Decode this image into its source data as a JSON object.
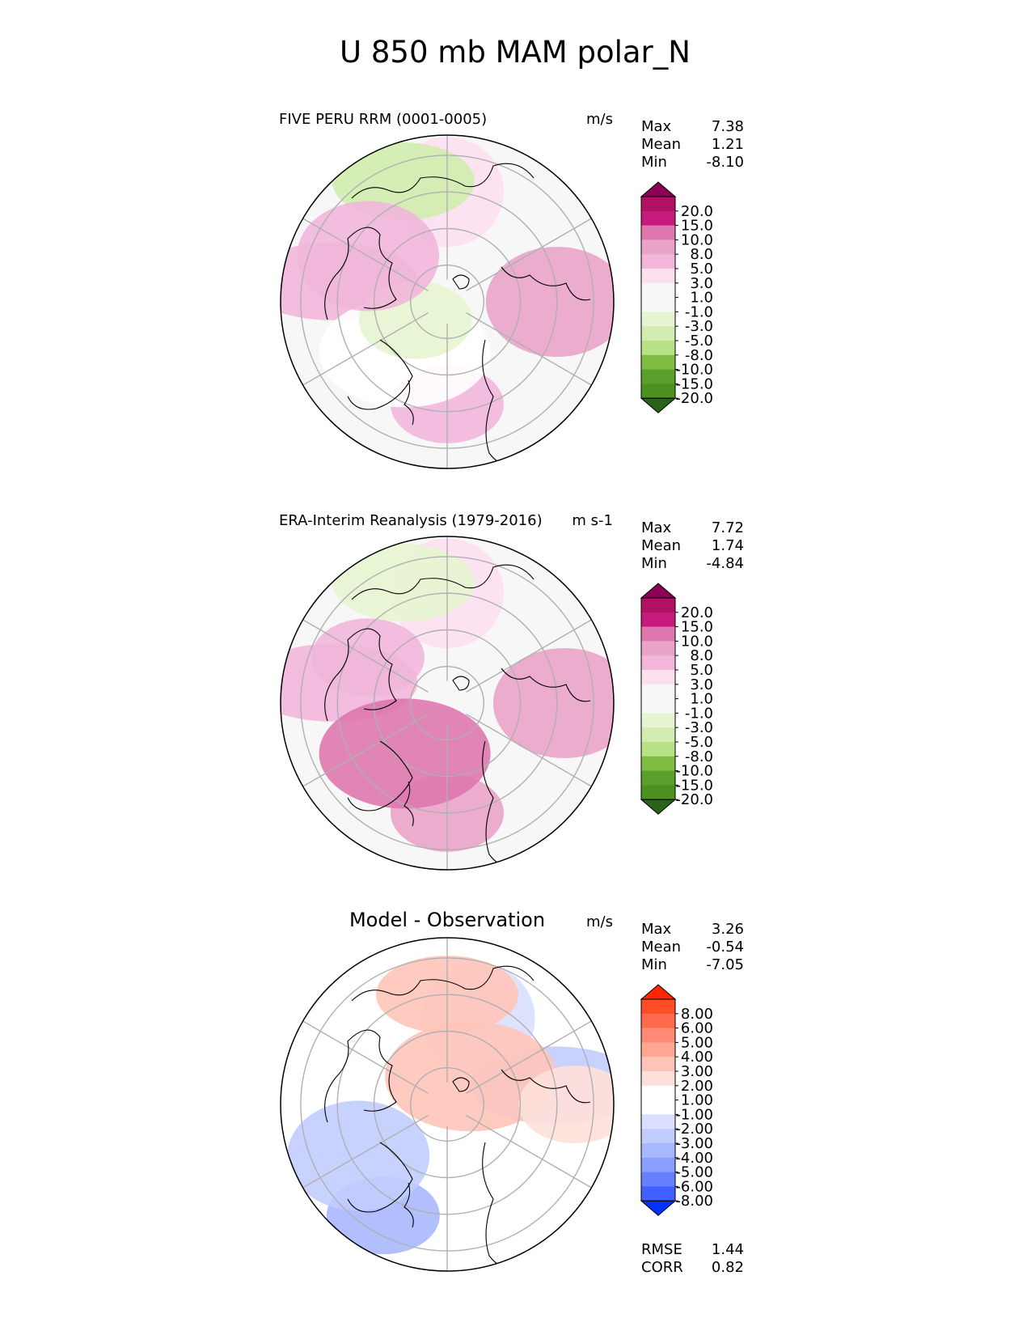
{
  "figure_title": "U 850 mb MAM polar_N",
  "colors": {
    "land_outline": "#000000",
    "grid": "#b0b0b0",
    "frame": "#000000"
  },
  "chart_data": [
    {
      "type": "heatmap",
      "projection": "north-polar-stereographic",
      "title_left": "FIVE PERU RRM (0001-0005)",
      "units": "m/s",
      "stats": {
        "labels": [
          "Max",
          "Mean",
          "Min"
        ],
        "values": [
          "7.38",
          "1.21",
          "-8.10"
        ]
      },
      "colorbar": {
        "ticks": [
          "20.0",
          "15.0",
          "10.0",
          "8.0",
          "5.0",
          "3.0",
          "1.0",
          "-1.0",
          "-3.0",
          "-5.0",
          "-8.0",
          "-10.0",
          "-15.0",
          "-20.0"
        ],
        "colors": [
          "#8e0152",
          "#b0125f",
          "#c51b7d",
          "#de77ae",
          "#e9a3c9",
          "#f1b6da",
          "#fde0ef",
          "#f7f7f7",
          "#f7f7f7",
          "#e6f5d0",
          "#d0ecae",
          "#b8e186",
          "#7fbc41",
          "#5aa02c",
          "#4d9221",
          "#276419"
        ],
        "extend": "both"
      },
      "field": {
        "background": "#f7f7f7",
        "regions": [
          {
            "lat": 62,
            "lon": 0,
            "level": "#f1b6da"
          },
          {
            "lat": 60,
            "lon": 90,
            "level": "#e9a3c9"
          },
          {
            "lat": 58,
            "lon": -100,
            "level": "#f1b6da"
          },
          {
            "lat": 60,
            "lon": 180,
            "level": "#fde0ef"
          },
          {
            "lat": 55,
            "lon": -160,
            "level": "#d0ecae"
          },
          {
            "lat": 72,
            "lon": -40,
            "level": "#ffffff"
          },
          {
            "lat": 80,
            "lon": -60,
            "level": "#e6f5d0"
          },
          {
            "lat": 65,
            "lon": -120,
            "level": "#f1b6da"
          }
        ]
      }
    },
    {
      "type": "heatmap",
      "projection": "north-polar-stereographic",
      "title_left": "ERA-Interim Reanalysis (1979-2016)",
      "units": "m s-1",
      "stats": {
        "labels": [
          "Max",
          "Mean",
          "Min"
        ],
        "values": [
          "7.72",
          "1.74",
          "-4.84"
        ]
      },
      "colorbar": {
        "ticks": [
          "20.0",
          "15.0",
          "10.0",
          "8.0",
          "5.0",
          "3.0",
          "1.0",
          "-1.0",
          "-3.0",
          "-5.0",
          "-8.0",
          "-10.0",
          "-15.0",
          "-20.0"
        ],
        "colors": [
          "#8e0152",
          "#b0125f",
          "#c51b7d",
          "#de77ae",
          "#e9a3c9",
          "#f1b6da",
          "#fde0ef",
          "#f7f7f7",
          "#f7f7f7",
          "#e6f5d0",
          "#d0ecae",
          "#b8e186",
          "#7fbc41",
          "#5aa02c",
          "#4d9221",
          "#276419"
        ],
        "extend": "both"
      },
      "field": {
        "background": "#f7f7f7",
        "regions": [
          {
            "lat": 60,
            "lon": 0,
            "level": "#e9a3c9"
          },
          {
            "lat": 58,
            "lon": 90,
            "level": "#e9a3c9"
          },
          {
            "lat": 58,
            "lon": -100,
            "level": "#f1b6da"
          },
          {
            "lat": 60,
            "lon": 180,
            "level": "#fde0ef"
          },
          {
            "lat": 55,
            "lon": -160,
            "level": "#e6f5d0"
          },
          {
            "lat": 72,
            "lon": -40,
            "level": "#de77ae"
          },
          {
            "lat": 65,
            "lon": -120,
            "level": "#f1b6da"
          }
        ]
      }
    },
    {
      "type": "heatmap",
      "projection": "north-polar-stereographic",
      "title_center": "Model - Observation",
      "units": "m/s",
      "stats": {
        "labels": [
          "Max",
          "Mean",
          "Min"
        ],
        "values": [
          "3.26",
          "-0.54",
          "-7.05"
        ]
      },
      "colorbar": {
        "ticks": [
          "8.00",
          "6.00",
          "5.00",
          "4.00",
          "3.00",
          "2.00",
          "1.00",
          "-1.00",
          "-2.00",
          "-3.00",
          "-4.00",
          "-5.00",
          "-6.00",
          "-8.00"
        ],
        "colors": [
          "#ff2600",
          "#ff4d26",
          "#ff6a4d",
          "#ff8a73",
          "#ffa694",
          "#ffc4b8",
          "#ffe0d9",
          "#ffffff",
          "#ffffff",
          "#d9e0ff",
          "#c2cdff",
          "#a8b8ff",
          "#8aa0ff",
          "#6680ff",
          "#4060ff",
          "#0033ff"
        ],
        "extend": "both"
      },
      "extra_stats": {
        "labels": [
          "RMSE",
          "CORR"
        ],
        "values": [
          "1.44",
          "0.82"
        ]
      },
      "field": {
        "background": "#ffffff",
        "regions": [
          {
            "lat": 55,
            "lon": -30,
            "level": "#a8b8ff"
          },
          {
            "lat": 62,
            "lon": -60,
            "level": "#c2cdff"
          },
          {
            "lat": 60,
            "lon": 100,
            "level": "#c2cdff"
          },
          {
            "lat": 65,
            "lon": 160,
            "level": "#d9e0ff"
          },
          {
            "lat": 60,
            "lon": 180,
            "level": "#ffc4b8"
          },
          {
            "lat": 80,
            "lon": 140,
            "level": "#ffc4b8"
          },
          {
            "lat": 55,
            "lon": 90,
            "level": "#ffe0d9"
          }
        ]
      }
    }
  ]
}
